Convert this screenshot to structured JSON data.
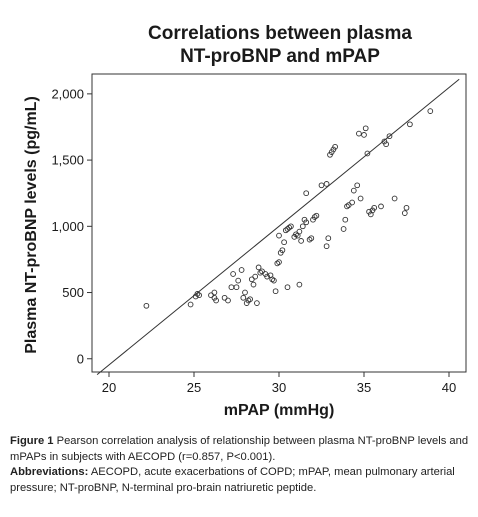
{
  "chart_data": {
    "type": "scatter",
    "title_line1": "Correlations between plasma",
    "title_line2": "NT-proBNP and mPAP",
    "xlabel": "mPAP (mmHg)",
    "ylabel": "Plasma NT-proBNP levels (pg/mL)",
    "xlim": [
      19,
      41
    ],
    "ylim": [
      -100,
      2150
    ],
    "xticks": [
      20,
      25,
      30,
      35,
      40
    ],
    "xtick_labels": [
      "20",
      "25",
      "30",
      "35",
      "40"
    ],
    "yticks": [
      0,
      500,
      1000,
      1500,
      2000
    ],
    "ytick_labels": [
      "0",
      "500",
      "1,000",
      "1,500",
      "2,000"
    ],
    "grid": false,
    "reference_line": {
      "from": [
        19.3,
        -120
      ],
      "to": [
        40.6,
        2110
      ]
    },
    "points": [
      [
        22.2,
        400
      ],
      [
        24.8,
        410
      ],
      [
        25.1,
        470
      ],
      [
        25.2,
        490
      ],
      [
        25.3,
        480
      ],
      [
        26.0,
        480
      ],
      [
        26.2,
        500
      ],
      [
        26.2,
        460
      ],
      [
        26.3,
        440
      ],
      [
        26.8,
        460
      ],
      [
        27.0,
        440
      ],
      [
        27.2,
        540
      ],
      [
        27.3,
        640
      ],
      [
        27.5,
        540
      ],
      [
        27.6,
        590
      ],
      [
        27.8,
        670
      ],
      [
        27.9,
        460
      ],
      [
        28.0,
        500
      ],
      [
        28.1,
        420
      ],
      [
        28.2,
        440
      ],
      [
        28.3,
        450
      ],
      [
        28.4,
        600
      ],
      [
        28.5,
        560
      ],
      [
        28.6,
        620
      ],
      [
        28.7,
        420
      ],
      [
        28.8,
        690
      ],
      [
        28.9,
        650
      ],
      [
        29.0,
        660
      ],
      [
        29.2,
        640
      ],
      [
        29.3,
        620
      ],
      [
        29.5,
        630
      ],
      [
        29.6,
        600
      ],
      [
        29.7,
        590
      ],
      [
        29.8,
        510
      ],
      [
        29.9,
        720
      ],
      [
        30.0,
        730
      ],
      [
        30.0,
        930
      ],
      [
        30.1,
        800
      ],
      [
        30.2,
        820
      ],
      [
        30.3,
        880
      ],
      [
        30.4,
        970
      ],
      [
        30.5,
        980
      ],
      [
        30.6,
        990
      ],
      [
        30.7,
        1000
      ],
      [
        30.9,
        920
      ],
      [
        31.0,
        940
      ],
      [
        31.1,
        930
      ],
      [
        31.2,
        960
      ],
      [
        31.3,
        890
      ],
      [
        31.4,
        1000
      ],
      [
        31.5,
        1050
      ],
      [
        31.6,
        1030
      ],
      [
        31.8,
        900
      ],
      [
        31.9,
        910
      ],
      [
        32.0,
        1050
      ],
      [
        32.1,
        1070
      ],
      [
        32.2,
        1080
      ],
      [
        30.5,
        540
      ],
      [
        31.2,
        560
      ],
      [
        31.6,
        1250
      ],
      [
        32.5,
        1310
      ],
      [
        32.8,
        1320
      ],
      [
        33.0,
        1540
      ],
      [
        33.1,
        1560
      ],
      [
        33.2,
        1580
      ],
      [
        33.3,
        1600
      ],
      [
        32.8,
        850
      ],
      [
        32.9,
        910
      ],
      [
        33.8,
        980
      ],
      [
        33.9,
        1050
      ],
      [
        34.0,
        1150
      ],
      [
        34.1,
        1160
      ],
      [
        34.3,
        1180
      ],
      [
        34.4,
        1270
      ],
      [
        34.6,
        1310
      ],
      [
        34.7,
        1700
      ],
      [
        34.8,
        1210
      ],
      [
        35.0,
        1690
      ],
      [
        35.1,
        1740
      ],
      [
        35.3,
        1110
      ],
      [
        35.4,
        1090
      ],
      [
        35.5,
        1120
      ],
      [
        35.6,
        1140
      ],
      [
        35.2,
        1550
      ],
      [
        36.0,
        1150
      ],
      [
        36.2,
        1640
      ],
      [
        36.3,
        1620
      ],
      [
        36.5,
        1680
      ],
      [
        36.8,
        1210
      ],
      [
        37.4,
        1100
      ],
      [
        37.5,
        1140
      ],
      [
        37.7,
        1770
      ],
      [
        38.9,
        1870
      ]
    ]
  },
  "caption": {
    "figure_label": "Figure 1",
    "figure_text": " Pearson correlation analysis of relationship between plasma NT-proBNP levels and mPAPs in subjects with AECOPD (r=0.857, P<0.001).",
    "abbrev_label": "Abbreviations:",
    "abbrev_text": " AECOPD, acute exacerbations of COPD; mPAP, mean pulmonary arterial pressure; NT-proBNP, N-terminal pro-brain natriuretic peptide."
  }
}
